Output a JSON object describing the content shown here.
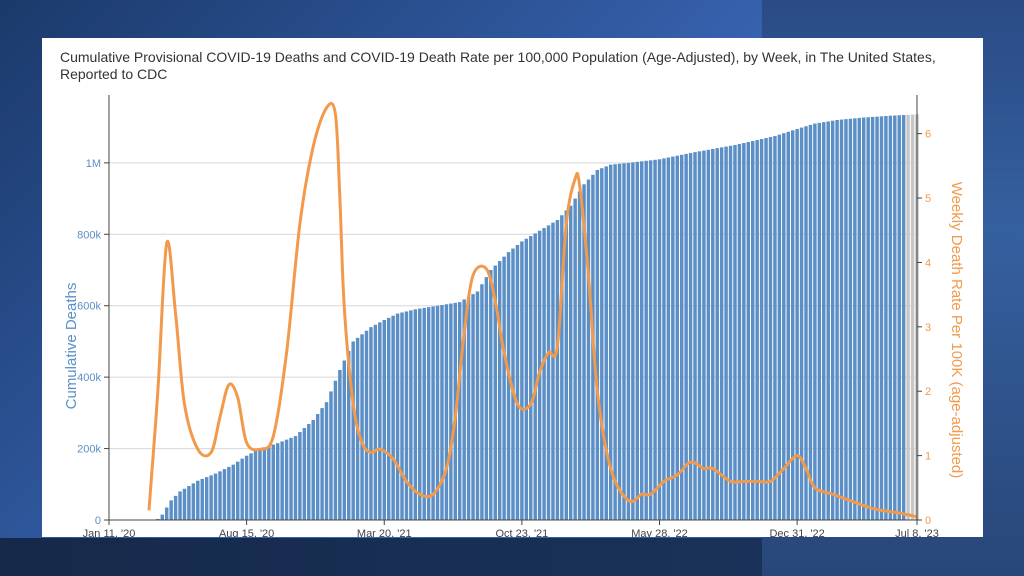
{
  "chart_data": {
    "type": "bar",
    "title": "Cumulative Provisional COVID-19 Deaths and COVID-19 Death Rate per 100,000 Population (Age-Adjusted), by Week, in The United States, Reported to CDC",
    "xlabel": "",
    "ylabel": "Cumulative Deaths",
    "y2label": "Weekly Death Rate Per 100K (age-adjusted)",
    "x_tick_labels": [
      "Jan 11, '20",
      "Aug 15, '20",
      "Mar 20, '21",
      "Oct 23, '21",
      "May 28, '22",
      "Dec 31, '22",
      "Jul 8, '23"
    ],
    "y_tick_labels": [
      "0",
      "200k",
      "400k",
      "600k",
      "800k",
      "1M"
    ],
    "y2_tick_labels": [
      "0",
      "1",
      "2",
      "3",
      "4",
      "5",
      "6"
    ],
    "xlim": [
      "2020-01-11",
      "2023-07-08"
    ],
    "ylim": [
      0,
      1190000
    ],
    "y2lim": [
      0,
      6.6
    ],
    "grid": true,
    "colors": {
      "bars": "#5b8fc6",
      "bars_provisional": "#c7c7c7",
      "line": "#f29a4c",
      "grid": "#d7d7d7",
      "title": "#333333",
      "left_axis": "#5b8fc6",
      "right_axis": "#f29a4c"
    },
    "series": [
      {
        "axis": "left",
        "kind": "bar",
        "x": [
          "2020-03-14",
          "2020-03-21",
          "2020-03-28",
          "2020-04-04",
          "2020-04-11",
          "2020-04-18",
          "2020-05-02",
          "2020-05-30",
          "2020-06-27",
          "2020-07-25",
          "2020-08-15",
          "2020-09-05",
          "2020-10-03",
          "2020-10-31",
          "2020-11-28",
          "2020-12-19",
          "2021-01-09",
          "2021-01-30",
          "2021-02-27",
          "2021-03-20",
          "2021-04-10",
          "2021-05-08",
          "2021-06-12",
          "2021-07-17",
          "2021-08-14",
          "2021-09-04",
          "2021-10-02",
          "2021-10-23",
          "2021-11-20",
          "2021-12-18",
          "2022-01-08",
          "2022-01-29",
          "2022-02-19",
          "2022-03-12",
          "2022-04-09",
          "2022-05-28",
          "2022-07-23",
          "2022-09-24",
          "2022-11-26",
          "2022-12-31",
          "2023-01-28",
          "2023-03-04",
          "2023-04-15",
          "2023-05-27",
          "2023-06-17",
          "2023-07-08"
        ],
        "values": [
          0,
          200,
          3000,
          15000,
          35000,
          55000,
          80000,
          110000,
          130000,
          155000,
          180000,
          200000,
          215000,
          235000,
          280000,
          330000,
          420000,
          500000,
          540000,
          560000,
          578000,
          590000,
          600000,
          610000,
          640000,
          700000,
          750000,
          780000,
          810000,
          840000,
          880000,
          940000,
          980000,
          995000,
          1000000,
          1010000,
          1030000,
          1050000,
          1075000,
          1095000,
          1110000,
          1120000,
          1127000,
          1132000,
          1134000,
          1136000
        ]
      },
      {
        "axis": "right",
        "kind": "line",
        "x": [
          "2020-03-14",
          "2020-03-28",
          "2020-04-11",
          "2020-04-25",
          "2020-05-09",
          "2020-05-30",
          "2020-06-20",
          "2020-07-04",
          "2020-07-18",
          "2020-08-01",
          "2020-08-15",
          "2020-09-05",
          "2020-09-26",
          "2020-10-17",
          "2020-11-07",
          "2020-11-28",
          "2020-12-19",
          "2021-01-02",
          "2021-01-09",
          "2021-01-16",
          "2021-01-30",
          "2021-02-13",
          "2021-02-27",
          "2021-03-13",
          "2021-04-03",
          "2021-04-24",
          "2021-05-15",
          "2021-06-05",
          "2021-06-26",
          "2021-07-10",
          "2021-07-24",
          "2021-08-07",
          "2021-08-28",
          "2021-09-11",
          "2021-09-25",
          "2021-10-16",
          "2021-11-06",
          "2021-11-20",
          "2021-12-04",
          "2021-12-18",
          "2022-01-01",
          "2022-01-15",
          "2022-01-22",
          "2022-02-05",
          "2022-02-19",
          "2022-03-12",
          "2022-04-09",
          "2022-04-30",
          "2022-05-14",
          "2022-06-04",
          "2022-06-25",
          "2022-07-16",
          "2022-08-06",
          "2022-08-20",
          "2022-09-17",
          "2022-10-08",
          "2022-10-29",
          "2022-11-19",
          "2022-12-10",
          "2022-12-31",
          "2023-01-14",
          "2023-01-28",
          "2023-02-25",
          "2023-03-25",
          "2023-04-22",
          "2023-05-13",
          "2023-06-03",
          "2023-06-24",
          "2023-07-08"
        ],
        "values": [
          0.15,
          2.0,
          4.3,
          3.2,
          1.8,
          1.1,
          1.05,
          1.6,
          2.1,
          1.9,
          1.2,
          1.1,
          1.3,
          2.6,
          4.6,
          5.8,
          6.4,
          6.3,
          5.0,
          3.3,
          1.8,
          1.2,
          1.05,
          1.1,
          0.95,
          0.6,
          0.4,
          0.4,
          0.8,
          1.6,
          2.9,
          3.8,
          3.9,
          3.4,
          2.6,
          1.8,
          1.8,
          2.3,
          2.6,
          2.7,
          4.6,
          5.3,
          5.2,
          3.8,
          2.0,
          0.8,
          0.3,
          0.4,
          0.4,
          0.6,
          0.7,
          0.9,
          0.8,
          0.8,
          0.6,
          0.6,
          0.6,
          0.6,
          0.8,
          1.0,
          0.8,
          0.5,
          0.4,
          0.3,
          0.2,
          0.15,
          0.12,
          0.08,
          0.05
        ]
      }
    ]
  }
}
